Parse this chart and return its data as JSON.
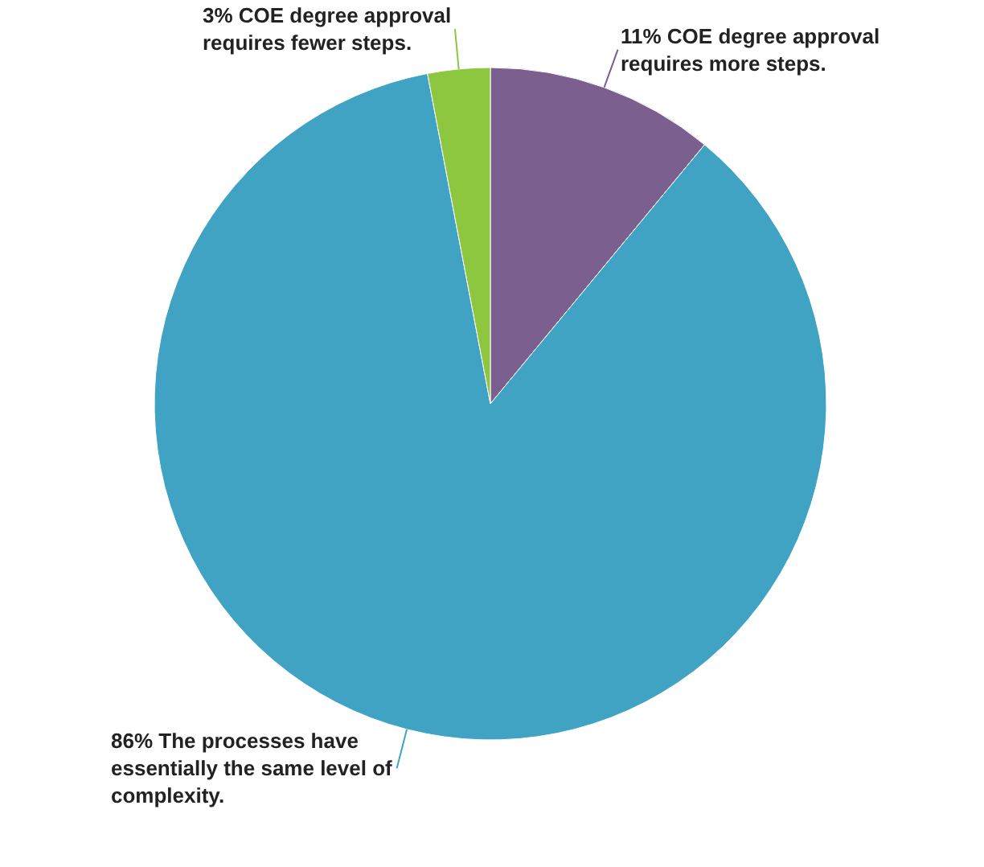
{
  "chart_data": {
    "type": "pie",
    "categories": [
      "11% COE degree approval requires more steps.",
      "86% The processes have essentially the same level of complexity.",
      "3% COE degree approval requires fewer steps."
    ],
    "values": [
      11,
      86,
      3
    ],
    "colors": [
      "#7b5f8f",
      "#40a3c3",
      "#8dc63f"
    ],
    "legend": false
  }
}
